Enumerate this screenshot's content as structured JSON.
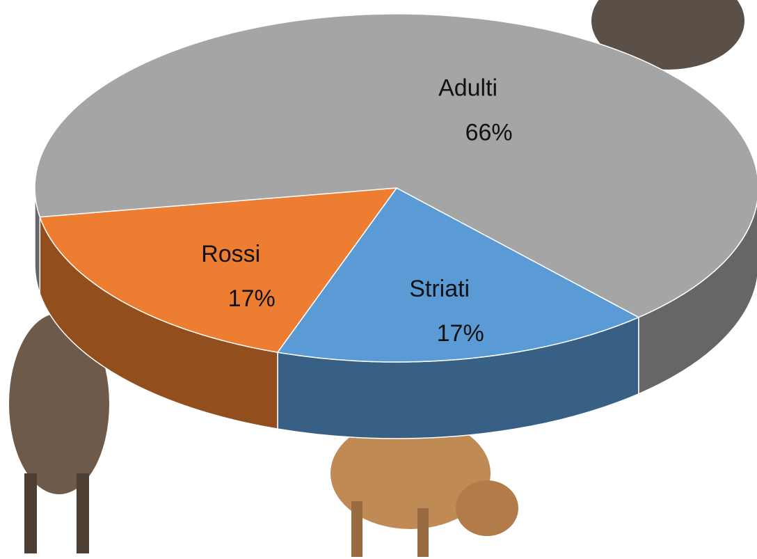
{
  "chart_data": {
    "type": "pie3d",
    "categories": [
      "Adulti",
      "Rossi",
      "Striati"
    ],
    "values": [
      66,
      17,
      17
    ],
    "value_labels": [
      "66%",
      "17%",
      "17%"
    ],
    "colors": [
      "#a5a5a5",
      "#ed7d31",
      "#5b9bd5"
    ]
  }
}
